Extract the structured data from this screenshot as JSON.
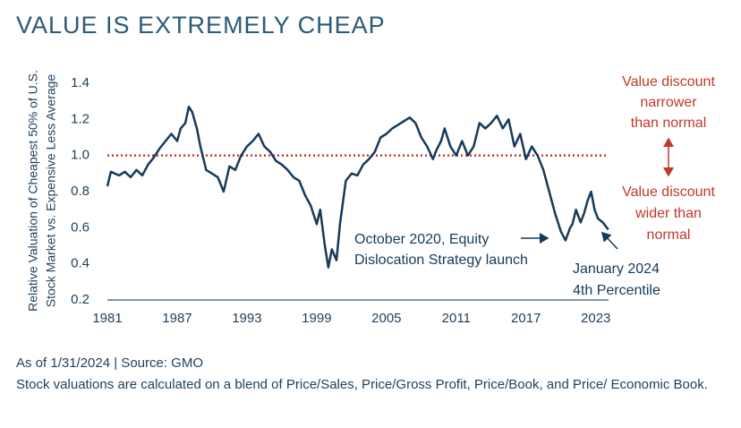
{
  "chart_data": {
    "type": "line",
    "title": "VALUE IS EXTREMELY CHEAP",
    "y_label": [
      "Relative Valuation of Cheapest 50% of U.S.",
      "Stock Market vs. Expensive Less Average"
    ],
    "color": "#163a5a",
    "x": [
      1981.0,
      1981.3,
      1982.0,
      1982.5,
      1983.0,
      1983.5,
      1984.0,
      1984.5,
      1985.0,
      1985.5,
      1986.0,
      1986.5,
      1987.0,
      1987.3,
      1987.7,
      1988.0,
      1988.3,
      1988.7,
      1989.0,
      1989.5,
      1990.0,
      1990.5,
      1991.0,
      1991.5,
      1992.0,
      1992.5,
      1993.0,
      1993.5,
      1994.0,
      1994.5,
      1995.0,
      1995.5,
      1996.0,
      1996.5,
      1997.0,
      1997.5,
      1998.0,
      1998.5,
      1999.0,
      1999.3,
      1999.7,
      2000.0,
      2000.3,
      2000.7,
      2001.0,
      2001.5,
      2002.0,
      2002.5,
      2003.0,
      2003.5,
      2004.0,
      2004.5,
      2005.0,
      2005.5,
      2006.0,
      2006.5,
      2007.0,
      2007.5,
      2008.0,
      2008.5,
      2009.0,
      2009.3,
      2009.7,
      2010.0,
      2010.5,
      2011.0,
      2011.5,
      2012.0,
      2012.5,
      2013.0,
      2013.5,
      2014.0,
      2014.5,
      2015.0,
      2015.5,
      2016.0,
      2016.5,
      2017.0,
      2017.5,
      2018.0,
      2018.5,
      2019.0,
      2019.5,
      2020.0,
      2020.4,
      2020.8,
      2021.0,
      2021.3,
      2021.7,
      2022.0,
      2022.3,
      2022.6,
      2022.9,
      2023.2,
      2023.6,
      2024.08
    ],
    "values": [
      0.83,
      0.91,
      0.89,
      0.91,
      0.88,
      0.92,
      0.89,
      0.95,
      0.99,
      1.04,
      1.08,
      1.12,
      1.08,
      1.15,
      1.18,
      1.27,
      1.24,
      1.15,
      1.05,
      0.92,
      0.9,
      0.88,
      0.8,
      0.94,
      0.92,
      1.0,
      1.05,
      1.08,
      1.12,
      1.05,
      1.02,
      0.97,
      0.95,
      0.92,
      0.88,
      0.86,
      0.78,
      0.72,
      0.62,
      0.7,
      0.5,
      0.38,
      0.48,
      0.42,
      0.62,
      0.86,
      0.9,
      0.89,
      0.95,
      0.98,
      1.02,
      1.1,
      1.12,
      1.15,
      1.17,
      1.19,
      1.21,
      1.18,
      1.1,
      1.05,
      0.98,
      1.03,
      1.08,
      1.15,
      1.05,
      1.0,
      1.08,
      1.0,
      1.05,
      1.18,
      1.15,
      1.18,
      1.22,
      1.15,
      1.2,
      1.05,
      1.12,
      0.98,
      1.05,
      1.0,
      0.92,
      0.8,
      0.68,
      0.58,
      0.53,
      0.6,
      0.62,
      0.7,
      0.63,
      0.68,
      0.75,
      0.8,
      0.7,
      0.65,
      0.63,
      0.59
    ],
    "xlim": [
      1981,
      2024.1
    ],
    "xticks": [
      1981,
      1987,
      1993,
      1999,
      2005,
      2011,
      2017,
      2023
    ],
    "ylim": [
      0.2,
      1.4
    ],
    "yticks": [
      0.2,
      0.4,
      0.6,
      0.8,
      {
        "value": 1,
        "label": "1.0"
      },
      1.2,
      1.4
    ],
    "reference_line": {
      "value": 1,
      "color": "#c0392b"
    },
    "annotations": {
      "launch": [
        "October 2020, Equity",
        "Dislocation Strategy launch"
      ],
      "latest": [
        "January 2024",
        "4th Percentile"
      ],
      "narrower": [
        "Value discount",
        "narrower",
        "than normal"
      ],
      "wider": [
        "Value discount",
        "wider than",
        "normal"
      ]
    },
    "source": "As of 1/31/2024 | Source: GMO",
    "note": "Stock valuations are calculated on a blend of Price/Sales, Price/Gross Profit, Price/Book, and Price/ Economic Book."
  }
}
